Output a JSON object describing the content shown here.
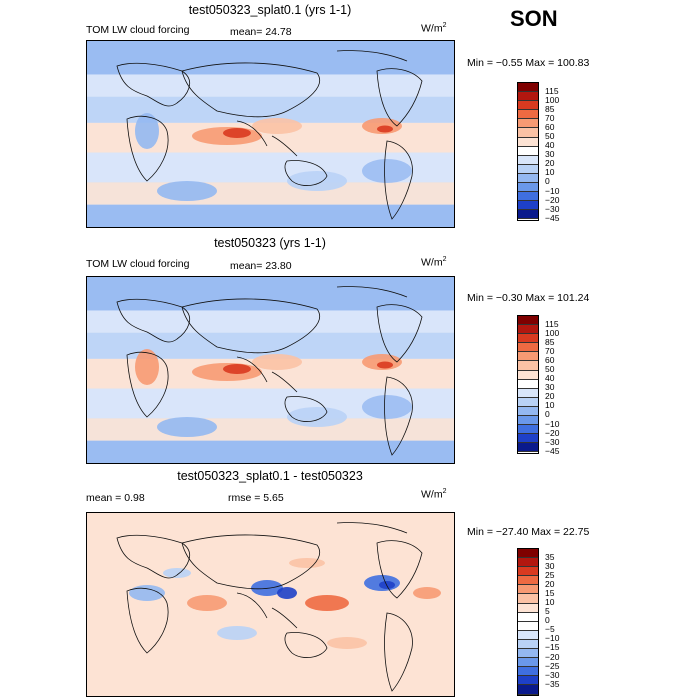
{
  "season": "SON",
  "panels": [
    {
      "title": "test050323_splat0.1 (yrs 1-1)",
      "variable": "TOM LW cloud forcing",
      "stat1": "mean=  24.78",
      "stat2": "",
      "units_base": "W/m",
      "units_exp": "2",
      "minmax": "Min =  −0.55 Max = 100.83",
      "levels": [
        "115",
        "100",
        "85",
        "70",
        "60",
        "50",
        "40",
        "30",
        "20",
        "10",
        "0",
        "−10",
        "−20",
        "−30",
        "−45"
      ],
      "colors": [
        "#7f0000",
        "#b2170f",
        "#d93a20",
        "#ee6a42",
        "#f79a73",
        "#fbc2a5",
        "#fde3d4",
        "#ffffff",
        "#d9e6fa",
        "#b9d2f6",
        "#94b8f1",
        "#6a98ea",
        "#3f6fe0",
        "#1e40c8",
        "#0a1a8c"
      ]
    },
    {
      "title": "test050323 (yrs 1-1)",
      "variable": "TOM LW cloud forcing",
      "stat1": "mean=  23.80",
      "stat2": "",
      "units_base": "W/m",
      "units_exp": "2",
      "minmax": "Min =  −0.30 Max = 101.24",
      "levels": [
        "115",
        "100",
        "85",
        "70",
        "60",
        "50",
        "40",
        "30",
        "20",
        "10",
        "0",
        "−10",
        "−20",
        "−30",
        "−45"
      ],
      "colors": [
        "#7f0000",
        "#b2170f",
        "#d93a20",
        "#ee6a42",
        "#f79a73",
        "#fbc2a5",
        "#fde3d4",
        "#ffffff",
        "#d9e6fa",
        "#b9d2f6",
        "#94b8f1",
        "#6a98ea",
        "#3f6fe0",
        "#1e40c8",
        "#0a1a8c"
      ]
    },
    {
      "title": "test050323_splat0.1 - test050323",
      "variable": "",
      "stat1": "mean =    0.98",
      "stat2": "rmse =    5.65",
      "units_base": "W/m",
      "units_exp": "2",
      "minmax": "Min = −27.40 Max =  22.75",
      "levels": [
        "35",
        "30",
        "25",
        "20",
        "15",
        "10",
        "5",
        "0",
        "−5",
        "−10",
        "−15",
        "−20",
        "−25",
        "−30",
        "−35"
      ],
      "colors": [
        "#7f0000",
        "#b2170f",
        "#d93a20",
        "#ee6a42",
        "#f79a73",
        "#fbc2a5",
        "#fde3d4",
        "#ffffff",
        "#ffffff",
        "#d9e6fa",
        "#b9d2f6",
        "#94b8f1",
        "#6a98ea",
        "#3f6fe0",
        "#1e40c8",
        "#0a1a8c"
      ]
    }
  ],
  "chart_data": [
    {
      "type": "heatmap",
      "title": "test050323_splat0.1 (yrs 1-1)",
      "subtitle": "TOM LW cloud forcing",
      "mean": 24.78,
      "min": -0.55,
      "max": 100.83,
      "units": "W/m2",
      "colorbar_levels": [
        115,
        100,
        85,
        70,
        60,
        50,
        40,
        30,
        20,
        10,
        0,
        -10,
        -20,
        -30,
        -45
      ]
    },
    {
      "type": "heatmap",
      "title": "test050323 (yrs 1-1)",
      "subtitle": "TOM LW cloud forcing",
      "mean": 23.8,
      "min": -0.3,
      "max": 101.24,
      "units": "W/m2",
      "colorbar_levels": [
        115,
        100,
        85,
        70,
        60,
        50,
        40,
        30,
        20,
        10,
        0,
        -10,
        -20,
        -30,
        -45
      ]
    },
    {
      "type": "heatmap",
      "title": "test050323_splat0.1 - test050323",
      "mean": 0.98,
      "rmse": 5.65,
      "min": -27.4,
      "max": 22.75,
      "units": "W/m2",
      "colorbar_levels": [
        35,
        30,
        25,
        20,
        15,
        10,
        5,
        0,
        -5,
        -10,
        -15,
        -20,
        -25,
        -30,
        -35
      ]
    }
  ]
}
